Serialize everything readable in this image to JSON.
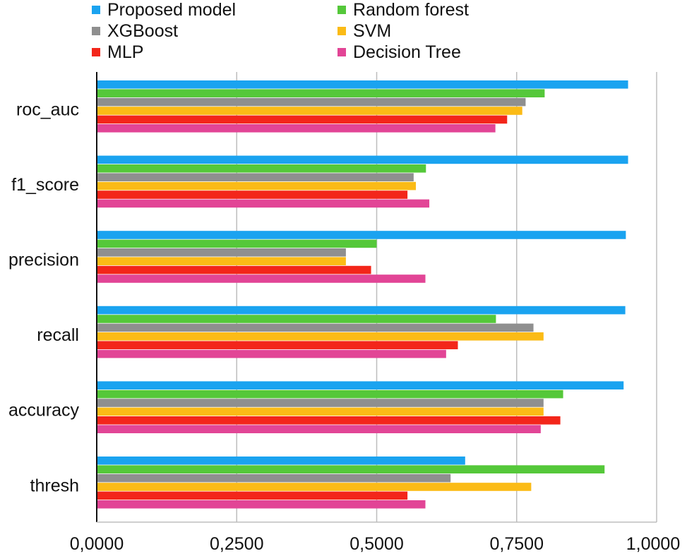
{
  "chart_data": {
    "type": "bar",
    "orientation": "horizontal",
    "categories": [
      "roc_auc",
      "f1_score",
      "precision",
      "recall",
      "accuracy",
      "thresh"
    ],
    "series": [
      {
        "name": "Proposed model",
        "color": "#1aa3f0",
        "values": [
          0.949,
          0.949,
          0.945,
          0.944,
          0.941,
          0.658
        ]
      },
      {
        "name": "Random forest",
        "color": "#55c83a",
        "values": [
          0.8,
          0.588,
          0.5,
          0.713,
          0.833,
          0.907
        ]
      },
      {
        "name": "XGBoost",
        "color": "#8f8f8f",
        "values": [
          0.766,
          0.566,
          0.445,
          0.78,
          0.798,
          0.632
        ]
      },
      {
        "name": "SVM",
        "color": "#fbbb16",
        "values": [
          0.76,
          0.57,
          0.445,
          0.798,
          0.798,
          0.776
        ]
      },
      {
        "name": "MLP",
        "color": "#f3261a",
        "values": [
          0.733,
          0.555,
          0.49,
          0.645,
          0.828,
          0.555
        ]
      },
      {
        "name": "Decision Tree",
        "color": "#e24596",
        "values": [
          0.712,
          0.594,
          0.587,
          0.624,
          0.793,
          0.587
        ]
      }
    ],
    "xlim": [
      0,
      1
    ],
    "xticks": [
      "0,0000",
      "0,2500",
      "0,5000",
      "0,7500",
      "1,0000"
    ],
    "grid": true,
    "legend_position": "top"
  }
}
